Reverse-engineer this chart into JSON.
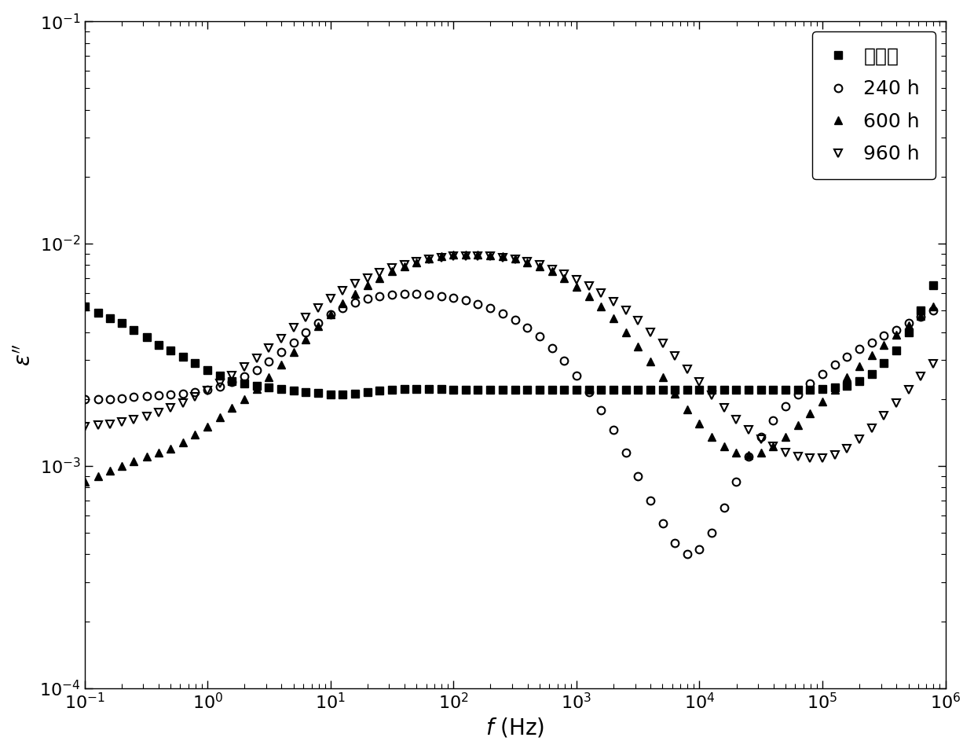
{
  "title": "",
  "xlabel": "$f$ (Hz)",
  "ylabel": "$\\varepsilon''$",
  "legend_labels": [
    "未老化",
    "240 h",
    "600 h",
    "960 h"
  ],
  "legend_markers": [
    "s",
    "o",
    "^",
    "v"
  ],
  "legend_fillstyles": [
    "full",
    "none",
    "full",
    "none"
  ],
  "series": {
    "unaged": {
      "freq": [
        0.1,
        0.13,
        0.16,
        0.2,
        0.25,
        0.32,
        0.4,
        0.5,
        0.63,
        0.79,
        1.0,
        1.26,
        1.58,
        2.0,
        2.51,
        3.16,
        3.98,
        5.01,
        6.31,
        7.94,
        10.0,
        12.6,
        15.8,
        20.0,
        25.1,
        31.6,
        39.8,
        50.1,
        63.1,
        79.4,
        100,
        126,
        158,
        200,
        251,
        316,
        398,
        501,
        631,
        794,
        1000,
        1259,
        1585,
        1995,
        2512,
        3162,
        3981,
        5012,
        6310,
        7943,
        10000,
        12589,
        15849,
        19953,
        25119,
        31623,
        39811,
        50119,
        63096,
        79433,
        100000,
        125893,
        158489,
        199526,
        251189,
        316228,
        398107,
        501187,
        630957,
        794328
      ],
      "eps": [
        0.0052,
        0.0049,
        0.0046,
        0.0044,
        0.0041,
        0.0038,
        0.0035,
        0.0033,
        0.0031,
        0.0029,
        0.0027,
        0.00255,
        0.0024,
        0.00235,
        0.0023,
        0.00225,
        0.00222,
        0.00218,
        0.00215,
        0.00213,
        0.0021,
        0.0021,
        0.00212,
        0.00215,
        0.00218,
        0.0022,
        0.00222,
        0.00222,
        0.00222,
        0.00222,
        0.0022,
        0.0022,
        0.0022,
        0.0022,
        0.0022,
        0.0022,
        0.0022,
        0.0022,
        0.0022,
        0.0022,
        0.0022,
        0.0022,
        0.0022,
        0.0022,
        0.0022,
        0.0022,
        0.0022,
        0.0022,
        0.0022,
        0.0022,
        0.0022,
        0.0022,
        0.0022,
        0.0022,
        0.0022,
        0.0022,
        0.0022,
        0.0022,
        0.0022,
        0.0022,
        0.00222,
        0.00225,
        0.0023,
        0.0024,
        0.0026,
        0.0029,
        0.0033,
        0.004,
        0.005,
        0.0065
      ]
    },
    "h240": {
      "freq": [
        0.1,
        0.13,
        0.16,
        0.2,
        0.25,
        0.32,
        0.4,
        0.5,
        0.63,
        0.79,
        1.0,
        1.26,
        1.58,
        2.0,
        2.51,
        3.16,
        3.98,
        5.01,
        6.31,
        7.94,
        10.0,
        12.6,
        15.8,
        20.0,
        25.1,
        31.6,
        39.8,
        50.1,
        63.1,
        79.4,
        100,
        126,
        158,
        200,
        251,
        316,
        398,
        501,
        631,
        794,
        1000,
        1259,
        1585,
        1995,
        2512,
        3162,
        3981,
        5012,
        6310,
        7943,
        10000,
        12589,
        15849,
        19953,
        25119,
        31623,
        39811,
        50119,
        63096,
        79433,
        100000,
        125893,
        158489,
        199526,
        251189,
        316228,
        398107,
        501187,
        630957,
        794328
      ],
      "eps": [
        0.002,
        0.002,
        0.002,
        0.00202,
        0.00204,
        0.00206,
        0.00208,
        0.0021,
        0.00212,
        0.00215,
        0.0022,
        0.00228,
        0.00238,
        0.00252,
        0.0027,
        0.00295,
        0.00325,
        0.0036,
        0.004,
        0.0044,
        0.0048,
        0.00515,
        0.00545,
        0.00565,
        0.0058,
        0.00588,
        0.00592,
        0.00592,
        0.0059,
        0.00582,
        0.0057,
        0.00555,
        0.00535,
        0.00512,
        0.00485,
        0.00455,
        0.0042,
        0.00382,
        0.0034,
        0.00298,
        0.00255,
        0.00215,
        0.00178,
        0.00145,
        0.00115,
        0.0009,
        0.0007,
        0.00055,
        0.00045,
        0.0004,
        0.00042,
        0.0005,
        0.00065,
        0.00085,
        0.0011,
        0.00135,
        0.0016,
        0.00185,
        0.0021,
        0.00235,
        0.0026,
        0.00285,
        0.0031,
        0.00335,
        0.0036,
        0.00385,
        0.0041,
        0.0044,
        0.0047,
        0.005
      ]
    },
    "h600": {
      "freq": [
        0.1,
        0.13,
        0.16,
        0.2,
        0.25,
        0.32,
        0.4,
        0.5,
        0.63,
        0.79,
        1.0,
        1.26,
        1.58,
        2.0,
        2.51,
        3.16,
        3.98,
        5.01,
        6.31,
        7.94,
        10.0,
        12.6,
        15.8,
        20.0,
        25.1,
        31.6,
        39.8,
        50.1,
        63.1,
        79.4,
        100,
        126,
        158,
        200,
        251,
        316,
        398,
        501,
        631,
        794,
        1000,
        1259,
        1585,
        1995,
        2512,
        3162,
        3981,
        5012,
        6310,
        7943,
        10000,
        12589,
        15849,
        19953,
        25119,
        31623,
        39811,
        50119,
        63096,
        79433,
        100000,
        125893,
        158489,
        199526,
        251189,
        316228,
        398107,
        501187,
        630957,
        794328
      ],
      "eps": [
        0.00085,
        0.0009,
        0.00095,
        0.001,
        0.00105,
        0.0011,
        0.00115,
        0.0012,
        0.00128,
        0.00138,
        0.0015,
        0.00165,
        0.00182,
        0.002,
        0.00222,
        0.0025,
        0.00285,
        0.00325,
        0.00372,
        0.00425,
        0.0048,
        0.0054,
        0.00595,
        0.0065,
        0.007,
        0.0075,
        0.0079,
        0.00825,
        0.00855,
        0.00875,
        0.0089,
        0.00895,
        0.00895,
        0.00888,
        0.00875,
        0.00855,
        0.00825,
        0.0079,
        0.0075,
        0.007,
        0.0064,
        0.0058,
        0.0052,
        0.0046,
        0.004,
        0.00345,
        0.00295,
        0.0025,
        0.00212,
        0.0018,
        0.00155,
        0.00135,
        0.00122,
        0.00115,
        0.00112,
        0.00115,
        0.00122,
        0.00135,
        0.00152,
        0.00172,
        0.00195,
        0.0022,
        0.0025,
        0.00282,
        0.00315,
        0.0035,
        0.00388,
        0.0043,
        0.00475,
        0.0052
      ]
    },
    "h960": {
      "freq": [
        0.1,
        0.13,
        0.16,
        0.2,
        0.25,
        0.32,
        0.4,
        0.5,
        0.63,
        0.79,
        1.0,
        1.26,
        1.58,
        2.0,
        2.51,
        3.16,
        3.98,
        5.01,
        6.31,
        7.94,
        10.0,
        12.6,
        15.8,
        20.0,
        25.1,
        31.6,
        39.8,
        50.1,
        63.1,
        79.4,
        100,
        126,
        158,
        200,
        251,
        316,
        398,
        501,
        631,
        794,
        1000,
        1259,
        1585,
        1995,
        2512,
        3162,
        3981,
        5012,
        6310,
        7943,
        10000,
        12589,
        15849,
        19953,
        25119,
        31623,
        39811,
        50119,
        63096,
        79433,
        100000,
        125893,
        158489,
        199526,
        251189,
        316228,
        398107,
        501187,
        630957,
        794328
      ],
      "eps": [
        0.0015,
        0.00152,
        0.00154,
        0.00158,
        0.00162,
        0.00167,
        0.00174,
        0.00182,
        0.00192,
        0.00204,
        0.00218,
        0.00235,
        0.00255,
        0.00278,
        0.00305,
        0.00338,
        0.00375,
        0.00418,
        0.00465,
        0.00515,
        0.00565,
        0.00615,
        0.0066,
        0.007,
        0.0074,
        0.00775,
        0.00805,
        0.0083,
        0.0085,
        0.00865,
        0.00875,
        0.0088,
        0.0088,
        0.00875,
        0.00865,
        0.0085,
        0.00828,
        0.008,
        0.00768,
        0.0073,
        0.0069,
        0.00645,
        0.00598,
        0.0055,
        0.005,
        0.0045,
        0.004,
        0.00355,
        0.00312,
        0.00272,
        0.00238,
        0.00208,
        0.00182,
        0.00162,
        0.00145,
        0.00132,
        0.00122,
        0.00115,
        0.0011,
        0.00108,
        0.00108,
        0.00112,
        0.0012,
        0.00132,
        0.00148,
        0.00168,
        0.00192,
        0.0022,
        0.00252,
        0.00288
      ]
    }
  },
  "marker_size": 7,
  "color": "black",
  "background_color": "#ffffff",
  "xlabel_fontsize": 20,
  "ylabel_fontsize": 20,
  "tick_fontsize": 16,
  "legend_fontsize": 18
}
